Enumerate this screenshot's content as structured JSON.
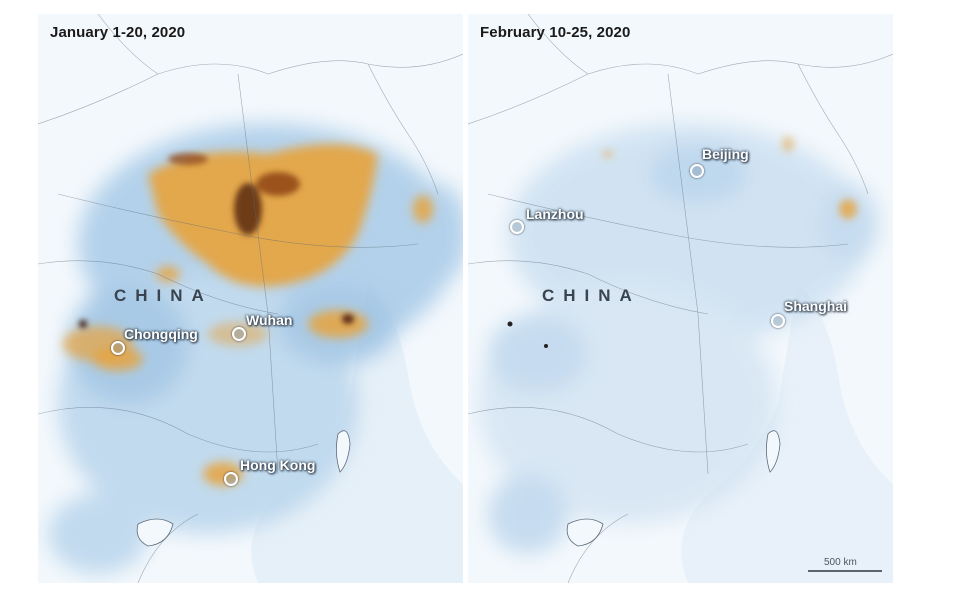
{
  "panels": [
    {
      "title": "January 1-20, 2020",
      "country": "CHINA",
      "cities": [
        "Chongqing",
        "Wuhan",
        "Hong Kong"
      ]
    },
    {
      "title": "February 10-25, 2020",
      "country": "CHINA",
      "cities": [
        "Beijing",
        "Lanzhou",
        "Shanghai"
      ]
    }
  ],
  "scale": {
    "label": "500 km"
  },
  "colors": {
    "high": "#e8a33c",
    "very_high": "#5a2a12",
    "low": "#8fb9dd",
    "background": "#f2f7fb"
  }
}
